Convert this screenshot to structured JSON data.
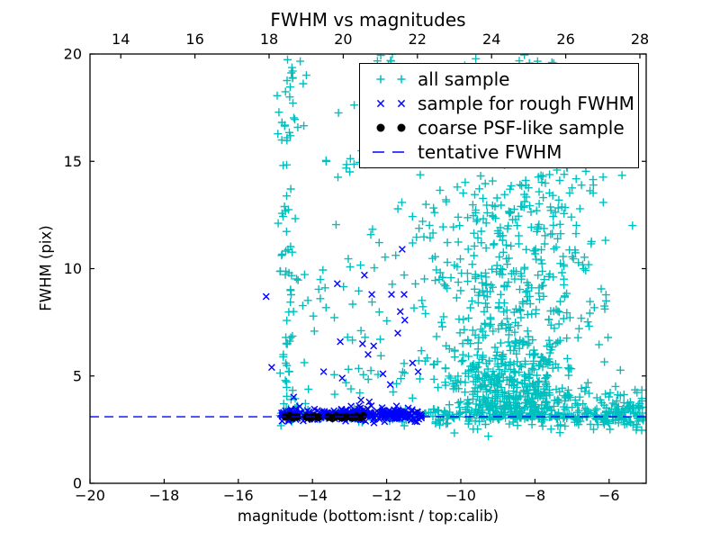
{
  "seed": 42,
  "chart_data": {
    "type": "scatter",
    "title": "FWHM vs magnitudes",
    "xlabel": "magnitude (bottom:isnt / top:calib)",
    "ylabel": "FWHM (pix)",
    "grid": false,
    "background": "#ffffff",
    "axes": {
      "x_bottom": {
        "lim": [
          -20,
          -5
        ],
        "ticks": [
          -20,
          -18,
          -16,
          -14,
          -12,
          -10,
          -8,
          -6
        ]
      },
      "x_top": {
        "lim": [
          13.17,
          28.17
        ],
        "ticks": [
          14,
          16,
          18,
          20,
          22,
          24,
          26,
          28
        ]
      },
      "y": {
        "lim": [
          0,
          20
        ],
        "ticks": [
          0,
          5,
          10,
          15,
          20
        ]
      }
    },
    "legend": {
      "position": "upper right",
      "entries": [
        {
          "label": "all sample",
          "marker": "plus",
          "color": "#00bfbf"
        },
        {
          "label": "sample for rough FWHM",
          "marker": "x",
          "color": "#0000ff"
        },
        {
          "label": "coarse PSF-like sample",
          "marker": "dot",
          "color": "#000000"
        },
        {
          "label": "tentative FWHM",
          "marker": "dashed-line",
          "color": "#0000ff"
        }
      ]
    },
    "tentative_fwhm": 3.1,
    "series": [
      {
        "name": "all sample",
        "marker": "plus",
        "color": "#00bfbf",
        "clusters": [
          {
            "n": 55,
            "x": {
              "dist": "normal",
              "mu": -14.65,
              "sigma": 0.15,
              "clip": [
                -15.05,
                -14.35
              ]
            },
            "y": {
              "dist": "uniform",
              "min": 3.4,
              "max": 14
            }
          },
          {
            "n": 28,
            "x": {
              "dist": "normal",
              "mu": -14.65,
              "sigma": 0.16,
              "clip": [
                -15.05,
                -14.3
              ]
            },
            "y": {
              "dist": "uniform",
              "min": 14,
              "max": 20
            }
          },
          {
            "n": 25,
            "x": {
              "dist": "normal",
              "mu": -14.6,
              "sigma": 0.12,
              "clip": [
                -14.95,
                -14.3
              ]
            },
            "y": {
              "dist": "normal",
              "mu": 3.2,
              "sigma": 0.2,
              "clip": [
                2.7,
                3.8
              ]
            }
          },
          {
            "n": 42,
            "x": {
              "dist": "uniform",
              "min": -14.35,
              "max": -11.6
            },
            "y": {
              "dist": "uniform",
              "min": 3.5,
              "max": 10
            }
          },
          {
            "n": 34,
            "x": {
              "dist": "uniform",
              "min": -14.35,
              "max": -11.5
            },
            "y": {
              "dist": "uniform",
              "min": 10,
              "max": 20
            }
          },
          {
            "n": 45,
            "x": {
              "dist": "uniform",
              "min": -14.85,
              "max": -11.5
            },
            "y": {
              "dist": "normal",
              "mu": 3.15,
              "sigma": 0.18,
              "clip": [
                2.6,
                3.8
              ]
            }
          },
          {
            "n": 48,
            "x": {
              "dist": "uniform",
              "min": -11.6,
              "max": -9.9
            },
            "y": {
              "dist": "uniform",
              "min": 3.5,
              "max": 17
            }
          },
          {
            "n": 10,
            "x": {
              "dist": "uniform",
              "min": -12.3,
              "max": -11.1
            },
            "y": {
              "dist": "uniform",
              "min": 18.7,
              "max": 20
            }
          },
          {
            "n": 430,
            "x": {
              "dist": "normal",
              "mu": -8.7,
              "sigma": 0.95,
              "clip": [
                -11.3,
                -5.4
              ]
            },
            "y": {
              "dist": "halfnormal",
              "base": 3.0,
              "sigma": 1.6,
              "clip": [
                2.2,
                20
              ]
            }
          },
          {
            "n": 300,
            "x": {
              "dist": "normal",
              "mu": -8.4,
              "sigma": 1.15,
              "clip": [
                -11.2,
                -5.3
              ]
            },
            "y": {
              "dist": "normal",
              "mu": 8,
              "sigma": 2.6,
              "clip": [
                3.5,
                16
              ]
            }
          },
          {
            "n": 190,
            "x": {
              "dist": "normal",
              "mu": -8.1,
              "sigma": 1.25,
              "clip": [
                -11.3,
                -5.4
              ]
            },
            "y": {
              "dist": "normal",
              "mu": 13.6,
              "sigma": 2.6,
              "clip": [
                9,
                20
              ]
            }
          },
          {
            "n": 85,
            "x": {
              "dist": "uniform",
              "min": -6.4,
              "max": -5.05
            },
            "y": {
              "dist": "normal",
              "mu": 3.3,
              "sigma": 0.5,
              "clip": [
                2.3,
                6
              ]
            }
          },
          {
            "n": 40,
            "x": {
              "dist": "uniform",
              "min": -10.8,
              "max": -5.2
            },
            "y": {
              "dist": "normal",
              "mu": 2.75,
              "sigma": 0.25,
              "clip": [
                1.9,
                3.2
              ]
            }
          },
          {
            "n": 130,
            "x": {
              "dist": "uniform",
              "min": -11.5,
              "max": -5.1
            },
            "y": {
              "dist": "normal",
              "mu": 3.2,
              "sigma": 0.18,
              "clip": [
                2.6,
                3.9
              ]
            }
          },
          {
            "n": 14,
            "x": {
              "dist": "uniform",
              "min": -11.3,
              "max": -7.2
            },
            "y": {
              "dist": "uniform",
              "min": 19,
              "max": 20
            }
          }
        ],
        "points": []
      },
      {
        "name": "sample for rough FWHM",
        "marker": "x",
        "color": "#0000ff",
        "clusters": [
          {
            "n": 230,
            "x": {
              "dist": "uniform",
              "min": -14.85,
              "max": -11.05
            },
            "y": {
              "dist": "normal",
              "mu": 3.2,
              "sigma": 0.14,
              "clip": [
                2.75,
                3.7
              ]
            }
          },
          {
            "n": 40,
            "x": {
              "dist": "uniform",
              "min": -14.8,
              "max": -11.1
            },
            "y": {
              "dist": "normal",
              "mu": 3.25,
              "sigma": 0.3,
              "clip": [
                2.6,
                4.3
              ]
            }
          }
        ],
        "points": [
          [
            -15.25,
            8.7
          ],
          [
            -15.1,
            5.4
          ],
          [
            -13.7,
            5.2
          ],
          [
            -13.33,
            9.3
          ],
          [
            -13.25,
            6.6
          ],
          [
            -13.2,
            4.9
          ],
          [
            -12.65,
            6.5
          ],
          [
            -12.6,
            9.7
          ],
          [
            -12.5,
            6.0
          ],
          [
            -12.4,
            8.8
          ],
          [
            -12.35,
            6.4
          ],
          [
            -12.1,
            5.1
          ],
          [
            -11.9,
            4.6
          ],
          [
            -11.87,
            8.8
          ],
          [
            -11.7,
            7.0
          ],
          [
            -11.63,
            8.0
          ],
          [
            -11.58,
            10.9
          ],
          [
            -11.53,
            8.8
          ],
          [
            -11.51,
            7.6
          ],
          [
            -11.3,
            5.6
          ],
          [
            -11.15,
            5.2
          ]
        ]
      },
      {
        "name": "coarse PSF-like sample",
        "marker": "dot",
        "color": "#000000",
        "clusters": [],
        "points": [
          [
            -14.73,
            3.1
          ],
          [
            -14.62,
            3.14
          ],
          [
            -14.52,
            3.06
          ],
          [
            -14.42,
            3.1
          ],
          [
            -14.16,
            3.1
          ],
          [
            -14.06,
            3.05
          ],
          [
            -13.96,
            3.12
          ],
          [
            -13.84,
            3.08
          ],
          [
            -13.57,
            3.1
          ],
          [
            -13.46,
            3.04
          ],
          [
            -13.36,
            3.12
          ],
          [
            -13.22,
            3.07
          ],
          [
            -13.1,
            3.1
          ],
          [
            -12.94,
            3.06
          ],
          [
            -12.82,
            3.11
          ],
          [
            -12.7,
            3.08
          ],
          [
            -12.63,
            3.13
          ]
        ]
      },
      {
        "name": "tentative FWHM",
        "type": "hline",
        "y": 3.1,
        "color": "#0000ff",
        "dash": [
          10,
          6
        ]
      }
    ]
  }
}
